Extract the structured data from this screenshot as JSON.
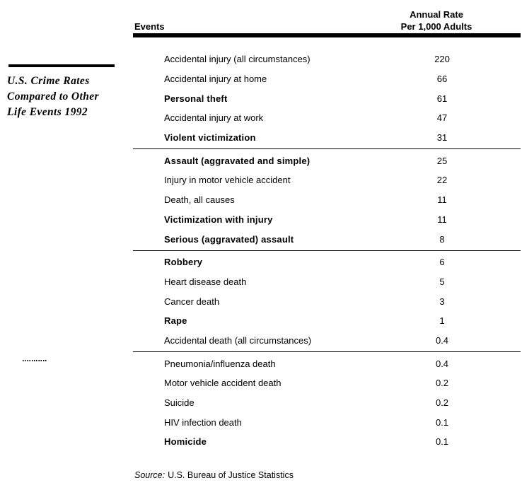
{
  "page": {
    "background_color": "#ffffff",
    "text_color": "#000000"
  },
  "sidebar": {
    "title_lines": [
      "U.S. Crime Rates",
      "Compared to Other",
      "Life Events 1992"
    ]
  },
  "table": {
    "events_header": "Events",
    "rate_header_line1": "Annual Rate",
    "rate_header_line2": "Per 1,000 Adults",
    "groups": [
      {
        "rows": [
          {
            "label": "Accidental injury (all circumstances)",
            "value": "220",
            "emphasis": "normal"
          },
          {
            "label": "Accidental injury at home",
            "value": "66",
            "emphasis": "normal"
          },
          {
            "label": "Personal theft",
            "value": "61",
            "emphasis": "bold"
          },
          {
            "label": "Accidental injury at work",
            "value": "47",
            "emphasis": "normal"
          },
          {
            "label": "Violent victimization",
            "value": "31",
            "emphasis": "bold"
          }
        ]
      },
      {
        "rows": [
          {
            "label": "Assault (aggravated and simple)",
            "value": "25",
            "emphasis": "bold"
          },
          {
            "label": "Injury in motor vehicle accident",
            "value": "22",
            "emphasis": "normal"
          },
          {
            "label": "Death, all causes",
            "value": "11",
            "emphasis": "normal"
          },
          {
            "label": "Victimization with injury",
            "value": "11",
            "emphasis": "bold"
          },
          {
            "label": "Serious (aggravated) assault",
            "value": "8",
            "emphasis": "bold"
          }
        ]
      },
      {
        "rows": [
          {
            "label": "Robbery",
            "value": "6",
            "emphasis": "bold"
          },
          {
            "label": "Heart disease death",
            "value": "5",
            "emphasis": "normal"
          },
          {
            "label": "Cancer death",
            "value": "3",
            "emphasis": "normal"
          },
          {
            "label": "Rape",
            "value": "1",
            "emphasis": "bold"
          },
          {
            "label": "Accidental death (all circumstances)",
            "value": "0.4",
            "emphasis": "normal"
          }
        ]
      },
      {
        "rows": [
          {
            "label": "Pneumonia/influenza death",
            "value": "0.4",
            "emphasis": "normal"
          },
          {
            "label": "Motor vehicle accident death",
            "value": "0.2",
            "emphasis": "normal"
          },
          {
            "label": "Suicide",
            "value": "0.2",
            "emphasis": "normal"
          },
          {
            "label": "HIV infection death",
            "value": "0.1",
            "emphasis": "normal"
          },
          {
            "label": "Homicide",
            "value": "0.1",
            "emphasis": "bold"
          }
        ]
      }
    ]
  },
  "source": {
    "label": "Source:",
    "text": "U.S. Bureau of Justice Statistics"
  }
}
